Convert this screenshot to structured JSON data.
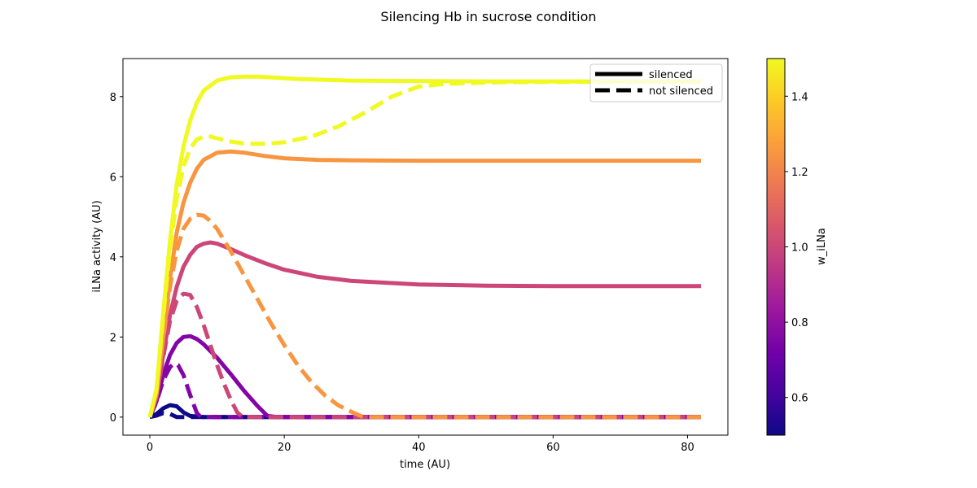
{
  "chart_data": {
    "type": "line",
    "title": "Silencing Hb in sucrose condition",
    "xlabel": "time (AU)",
    "ylabel": "iLNa activity (AU)",
    "xlim": [
      -4,
      86
    ],
    "ylim": [
      -0.45,
      8.95
    ],
    "x_ticks": [
      0,
      20,
      40,
      60,
      80
    ],
    "y_ticks": [
      0,
      2,
      4,
      6,
      8
    ],
    "grid": false,
    "legend": {
      "placement": "top-right",
      "entries": [
        {
          "label": "silenced",
          "style": "solid"
        },
        {
          "label": "not silenced",
          "style": "dashed"
        }
      ]
    },
    "colorbar": {
      "label": "w_iLNa",
      "colormap": "plasma",
      "range": [
        0.5,
        1.5
      ],
      "ticks": [
        0.6,
        0.8,
        1.0,
        1.2,
        1.4
      ],
      "tick_labels": [
        "0.6",
        "0.8",
        "1.0",
        "1.2",
        "1.4"
      ],
      "stops": [
        "#0d0887",
        "#46039f",
        "#7201a8",
        "#9c179e",
        "#bd3786",
        "#d8576b",
        "#ed7953",
        "#fb9f3a",
        "#fdca26",
        "#f0f921"
      ]
    },
    "series": [
      {
        "w": 0.5,
        "style": "solid",
        "color": "#0d0887",
        "points": [
          [
            0,
            0
          ],
          [
            1,
            0.08
          ],
          [
            2,
            0.22
          ],
          [
            3,
            0.3
          ],
          [
            4,
            0.27
          ],
          [
            5,
            0.12
          ],
          [
            6,
            0.03
          ],
          [
            8,
            0
          ],
          [
            82,
            0
          ]
        ]
      },
      {
        "w": 0.5,
        "style": "dashed",
        "color": "#0d0887",
        "points": [
          [
            0,
            0
          ],
          [
            1,
            0.04
          ],
          [
            2,
            0.1
          ],
          [
            3,
            0.08
          ],
          [
            4,
            0
          ],
          [
            82,
            0
          ]
        ]
      },
      {
        "w": 0.75,
        "style": "solid",
        "color": "#8405a7",
        "points": [
          [
            0,
            0
          ],
          [
            1,
            0.4
          ],
          [
            2,
            1.05
          ],
          [
            3,
            1.55
          ],
          [
            4,
            1.85
          ],
          [
            5,
            2.0
          ],
          [
            6,
            2.02
          ],
          [
            7,
            1.95
          ],
          [
            8,
            1.82
          ],
          [
            10,
            1.48
          ],
          [
            12,
            1.08
          ],
          [
            14,
            0.66
          ],
          [
            16,
            0.28
          ],
          [
            17.5,
            0.03
          ],
          [
            19,
            0
          ],
          [
            82,
            0
          ]
        ]
      },
      {
        "w": 0.75,
        "style": "dashed",
        "color": "#8405a7",
        "points": [
          [
            0,
            0
          ],
          [
            1,
            0.38
          ],
          [
            2,
            0.92
          ],
          [
            3,
            1.25
          ],
          [
            3.6,
            1.33
          ],
          [
            4.2,
            1.3
          ],
          [
            5,
            1.05
          ],
          [
            6,
            0.55
          ],
          [
            7,
            0.1
          ],
          [
            7.6,
            0
          ],
          [
            82,
            0
          ]
        ]
      },
      {
        "w": 1.0,
        "style": "solid",
        "color": "#cc4778",
        "points": [
          [
            0,
            0
          ],
          [
            1,
            0.5
          ],
          [
            2,
            1.55
          ],
          [
            3,
            2.55
          ],
          [
            4,
            3.25
          ],
          [
            5,
            3.75
          ],
          [
            6,
            4.05
          ],
          [
            7,
            4.25
          ],
          [
            8,
            4.33
          ],
          [
            9,
            4.36
          ],
          [
            10,
            4.33
          ],
          [
            12,
            4.2
          ],
          [
            14,
            4.05
          ],
          [
            17,
            3.85
          ],
          [
            20,
            3.68
          ],
          [
            25,
            3.5
          ],
          [
            30,
            3.4
          ],
          [
            40,
            3.31
          ],
          [
            50,
            3.28
          ],
          [
            60,
            3.27
          ],
          [
            82,
            3.27
          ]
        ]
      },
      {
        "w": 1.0,
        "style": "dashed",
        "color": "#cc4778",
        "points": [
          [
            0,
            0
          ],
          [
            1,
            0.5
          ],
          [
            2,
            1.5
          ],
          [
            3,
            2.4
          ],
          [
            4,
            2.9
          ],
          [
            5,
            3.08
          ],
          [
            6,
            3.05
          ],
          [
            7,
            2.75
          ],
          [
            8,
            2.3
          ],
          [
            9,
            1.8
          ],
          [
            10,
            1.3
          ],
          [
            11,
            0.85
          ],
          [
            12,
            0.45
          ],
          [
            13,
            0.12
          ],
          [
            13.8,
            0
          ],
          [
            82,
            0
          ]
        ]
      },
      {
        "w": 1.25,
        "style": "solid",
        "color": "#f89540",
        "points": [
          [
            0,
            0
          ],
          [
            1,
            0.6
          ],
          [
            2,
            2.0
          ],
          [
            3,
            3.45
          ],
          [
            4,
            4.6
          ],
          [
            5,
            5.35
          ],
          [
            6,
            5.85
          ],
          [
            7,
            6.2
          ],
          [
            8,
            6.42
          ],
          [
            10,
            6.6
          ],
          [
            12,
            6.63
          ],
          [
            14,
            6.6
          ],
          [
            17,
            6.52
          ],
          [
            20,
            6.46
          ],
          [
            25,
            6.42
          ],
          [
            30,
            6.41
          ],
          [
            40,
            6.4
          ],
          [
            82,
            6.4
          ]
        ]
      },
      {
        "w": 1.25,
        "style": "dashed",
        "color": "#f89540",
        "points": [
          [
            0,
            0
          ],
          [
            1,
            0.6
          ],
          [
            2,
            1.95
          ],
          [
            3,
            3.25
          ],
          [
            4,
            4.15
          ],
          [
            5,
            4.7
          ],
          [
            6,
            4.95
          ],
          [
            7,
            5.05
          ],
          [
            8,
            5.03
          ],
          [
            9,
            4.9
          ],
          [
            10,
            4.7
          ],
          [
            12,
            4.15
          ],
          [
            14,
            3.55
          ],
          [
            16,
            2.95
          ],
          [
            18,
            2.35
          ],
          [
            20,
            1.8
          ],
          [
            22,
            1.3
          ],
          [
            24,
            0.88
          ],
          [
            26,
            0.55
          ],
          [
            28,
            0.3
          ],
          [
            30,
            0.13
          ],
          [
            31.5,
            0.02
          ],
          [
            32.5,
            0
          ],
          [
            82,
            0
          ]
        ]
      },
      {
        "w": 1.5,
        "style": "solid",
        "color": "#f0f921",
        "points": [
          [
            0,
            0
          ],
          [
            1,
            0.7
          ],
          [
            2,
            2.6
          ],
          [
            3,
            4.4
          ],
          [
            4,
            5.8
          ],
          [
            5,
            6.75
          ],
          [
            6,
            7.4
          ],
          [
            7,
            7.85
          ],
          [
            8,
            8.15
          ],
          [
            10,
            8.4
          ],
          [
            12,
            8.48
          ],
          [
            14,
            8.5
          ],
          [
            16,
            8.5
          ],
          [
            18,
            8.48
          ],
          [
            22,
            8.44
          ],
          [
            30,
            8.4
          ],
          [
            40,
            8.39
          ],
          [
            50,
            8.38
          ],
          [
            82,
            8.38
          ]
        ]
      },
      {
        "w": 1.5,
        "style": "dashed",
        "color": "#f0f921",
        "points": [
          [
            0,
            0
          ],
          [
            1,
            0.7
          ],
          [
            2,
            2.5
          ],
          [
            3,
            4.2
          ],
          [
            4,
            5.45
          ],
          [
            5,
            6.25
          ],
          [
            6,
            6.7
          ],
          [
            7,
            6.93
          ],
          [
            8,
            7.0
          ],
          [
            9,
            7.0
          ],
          [
            10,
            6.96
          ],
          [
            12,
            6.88
          ],
          [
            14,
            6.83
          ],
          [
            16,
            6.82
          ],
          [
            18,
            6.83
          ],
          [
            20,
            6.86
          ],
          [
            24,
            7.0
          ],
          [
            28,
            7.25
          ],
          [
            32,
            7.6
          ],
          [
            36,
            8.0
          ],
          [
            40,
            8.25
          ],
          [
            44,
            8.32
          ],
          [
            48,
            8.34
          ],
          [
            52,
            8.36
          ],
          [
            60,
            8.37
          ],
          [
            82,
            8.37
          ]
        ]
      }
    ]
  }
}
